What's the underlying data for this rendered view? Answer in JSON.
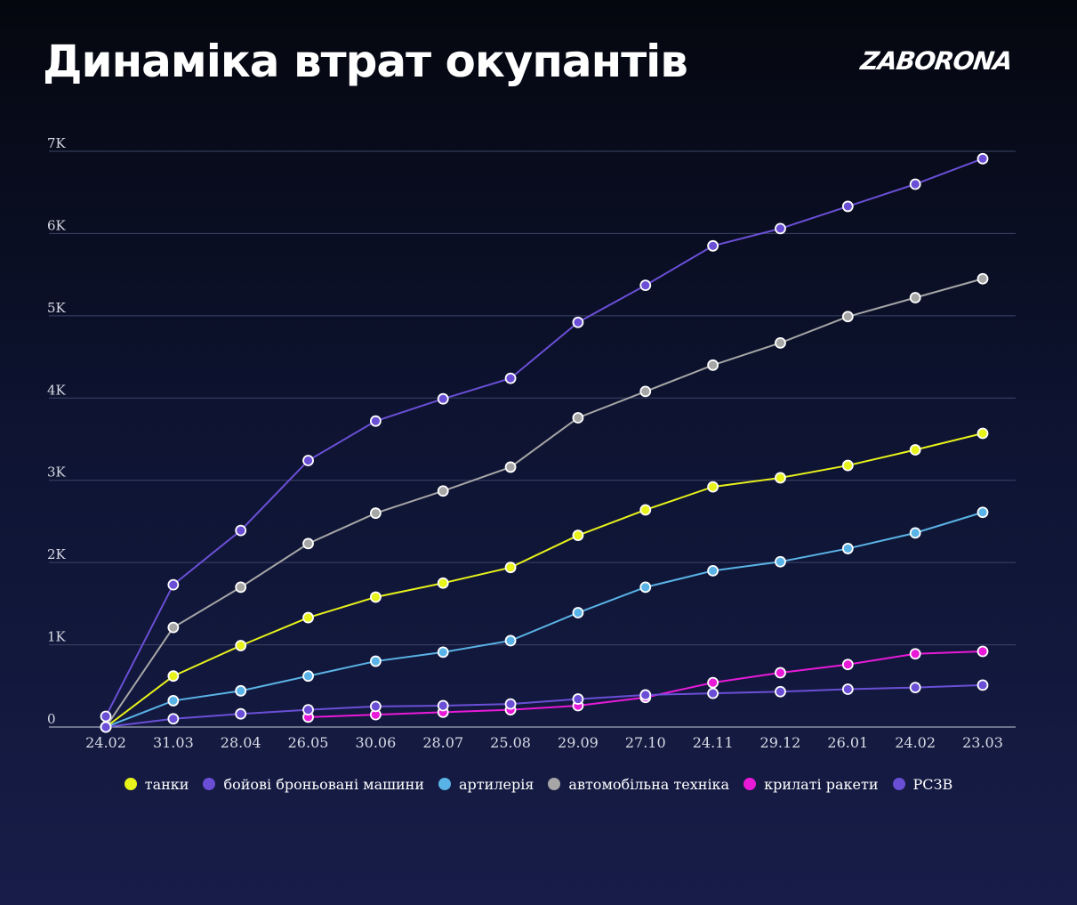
{
  "title": "Динаміка втрат окупантів",
  "brand": "ZABORONA",
  "chart_data": {
    "type": "line",
    "title": "Динаміка втрат окупантів",
    "xlabel": "",
    "ylabel": "",
    "ylim": [
      0,
      7000
    ],
    "y_ticks": [
      {
        "value": 0,
        "label": "0"
      },
      {
        "value": 1000,
        "label": "1K"
      },
      {
        "value": 2000,
        "label": "2K"
      },
      {
        "value": 3000,
        "label": "3K"
      },
      {
        "value": 4000,
        "label": "4K"
      },
      {
        "value": 5000,
        "label": "5K"
      },
      {
        "value": 6000,
        "label": "6K"
      },
      {
        "value": 7000,
        "label": "7K"
      }
    ],
    "grid": true,
    "legend_position": "bottom",
    "categories": [
      "24.02",
      "31.03",
      "28.04",
      "26.05",
      "30.06",
      "28.07",
      "25.08",
      "29.09",
      "27.10",
      "24.11",
      "29.12",
      "26.01",
      "24.02",
      "23.03"
    ],
    "series": [
      {
        "name": "танки",
        "color": "#e8f21b",
        "values": [
          0,
          620,
          990,
          1330,
          1580,
          1750,
          1940,
          2330,
          2640,
          2920,
          3030,
          3180,
          3370,
          3570
        ]
      },
      {
        "name": "бойові броньовані машини",
        "color": "#6a4fd6",
        "values": [
          130,
          1730,
          2390,
          3240,
          3720,
          3990,
          4240,
          4920,
          5370,
          5850,
          6060,
          6330,
          6600,
          6910
        ]
      },
      {
        "name": "артилерія",
        "color": "#5ab3e6",
        "values": [
          0,
          320,
          440,
          620,
          800,
          910,
          1050,
          1390,
          1700,
          1900,
          2010,
          2170,
          2360,
          2610
        ]
      },
      {
        "name": "автомобільна техніка",
        "color": "#a6a6a6",
        "values": [
          0,
          1210,
          1700,
          2230,
          2600,
          2870,
          3160,
          3760,
          4080,
          4400,
          4670,
          4990,
          5220,
          5450
        ]
      },
      {
        "name": "крилаті ракети",
        "color": "#e81ad8",
        "values": [
          null,
          null,
          null,
          120,
          150,
          180,
          210,
          260,
          360,
          540,
          660,
          760,
          890,
          920
        ]
      },
      {
        "name": "РСЗВ",
        "color": "#6a4fd6",
        "values": [
          0,
          100,
          160,
          210,
          250,
          260,
          280,
          340,
          390,
          410,
          430,
          460,
          480,
          510
        ]
      }
    ]
  }
}
